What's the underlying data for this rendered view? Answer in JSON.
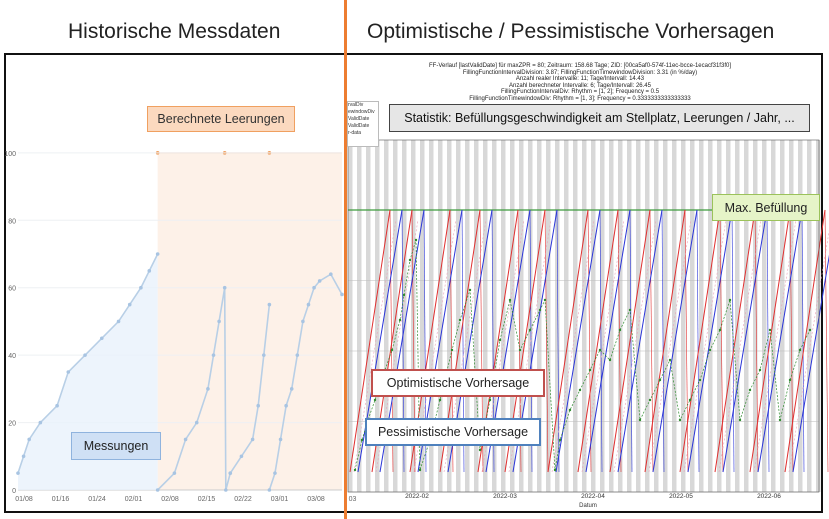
{
  "headings": {
    "left": "Historische Messdaten",
    "right": "Optimistische / Pessimistische Vorhersagen"
  },
  "callouts": {
    "computed_emptyings": "Berechnete Leerungen",
    "measurements": "Messungen",
    "statistics": "Statistik: Befüllungsgeschwindigkeit  am Stellplatz, Leerungen / Jahr, ...",
    "max_fill": "Max. Befüllung",
    "optimistic": "Optimistische  Vorhersage",
    "pessimistic": "Pessimistische  Vorhersage"
  },
  "colors": {
    "accent_orange": "#ed7d31",
    "optimistic_red": "#e03030",
    "pessimistic_blue": "#2a35d8",
    "measure_green": "#2e8b2e",
    "history_line": "#b8cfe6",
    "max_line": "#3c9a3c"
  },
  "stats_lines": [
    "FF-Verlauf [lastValidDate] für maxZPR = 80; Zeitraum: 158.68 Tage; ZID: [00ca5af0-574f-11ec-bcce-1ecacf31f3f0]",
    "FillingFunctionIntervalDivision: 3.87; FillingFunctionTimewindowDivision: 3.31 (in %/day)",
    "Anzahl realer Intervalle: 11; Tage/Intervall: 14.43",
    "Anzahl berechneter Intervalle: 6; Tage/Intervall: 26.45",
    "FillingFunctionIntervalDiv: Rhythm = [1, 2]; Frequency = 0.5",
    "FillingFunctionTimewindowDiv: Rhythm = [1, 3]; Frequency = 0.3333333333333333"
  ],
  "legend_items": [
    "rvalDiv",
    "ewindowDiv",
    "ValidDate",
    "ValidDate",
    "r-data"
  ],
  "chart_data": [
    {
      "type": "line",
      "name": "historical",
      "x_ticks": [
        "01/08",
        "01/16",
        "01/24",
        "02/01",
        "02/08",
        "02/15",
        "02/22",
        "03/01",
        "03/08",
        "03"
      ],
      "y_ticks": [
        0,
        20,
        40,
        60,
        80,
        100
      ],
      "ylim": [
        0,
        105
      ],
      "xlim": [
        0,
        58
      ],
      "series": [
        {
          "x": [
            0,
            1,
            2,
            4,
            7,
            9,
            12,
            15,
            18,
            20,
            22,
            23.5,
            25
          ],
          "y": [
            5,
            10,
            15,
            20,
            25,
            35,
            40,
            45,
            50,
            55,
            60,
            65,
            70
          ]
        },
        {
          "x": [
            25,
            28,
            30,
            32,
            34,
            35,
            36,
            37,
            37.2,
            38
          ],
          "y": [
            0,
            5,
            15,
            20,
            30,
            40,
            50,
            60,
            0,
            5
          ]
        },
        {
          "x": [
            38,
            40,
            42,
            43,
            44,
            45
          ],
          "y": [
            5,
            10,
            15,
            25,
            40,
            55
          ]
        },
        {
          "x": [
            45,
            46,
            47,
            48,
            49,
            50,
            51,
            52,
            53,
            54,
            56,
            58
          ],
          "y": [
            0,
            5,
            15,
            25,
            30,
            40,
            50,
            55,
            60,
            62,
            64,
            58
          ]
        }
      ],
      "emptying_markers_y": 100
    },
    {
      "type": "line",
      "name": "forecast",
      "x_ticks": [
        "2022-02",
        "2022-03",
        "2022-04",
        "2022-05",
        "2022-06"
      ],
      "xlabel": "Datum",
      "max_fill": 80,
      "ylim": [
        0,
        105
      ],
      "teeth_count": 14
    }
  ]
}
